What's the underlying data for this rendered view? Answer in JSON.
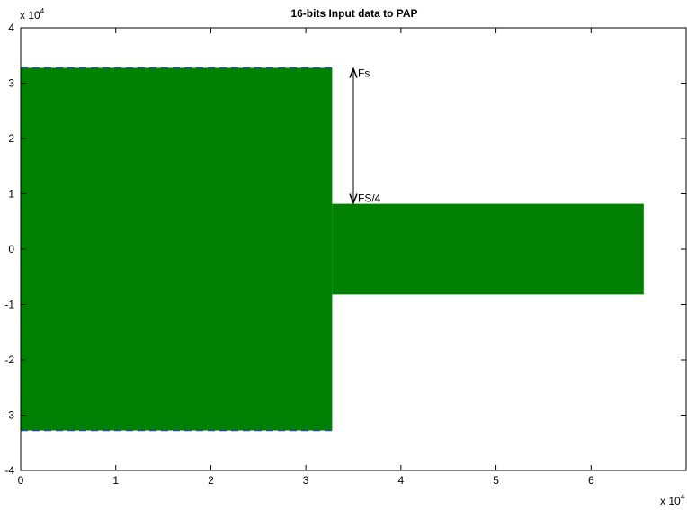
{
  "chart_data": {
    "type": "area",
    "title": "16-bits Input data to PAP",
    "xlabel": "",
    "ylabel": "",
    "xlim": [
      0,
      7
    ],
    "ylim": [
      -4,
      4
    ],
    "xticks": [
      0,
      1,
      2,
      3,
      4,
      5,
      6
    ],
    "yticks": [
      -4,
      -3,
      -2,
      -1,
      0,
      1,
      2,
      3,
      4
    ],
    "x_multiplier": {
      "base": "x 10",
      "exp": "4"
    },
    "y_multiplier": {
      "base": "x 10",
      "exp": "4"
    },
    "grid": false,
    "series": [
      {
        "color": "#008000",
        "segments": [
          {
            "x_start": 0,
            "x_end": 3.2768,
            "amplitude": 3.2767
          },
          {
            "x_start": 3.2768,
            "x_end": 6.5536,
            "amplitude": 0.8192
          }
        ]
      }
    ],
    "annotations": [
      {
        "text": "Fs",
        "x": 3.5,
        "y": 3.2767
      },
      {
        "text": "FS/4",
        "x": 3.5,
        "y": 0.8192
      }
    ]
  }
}
